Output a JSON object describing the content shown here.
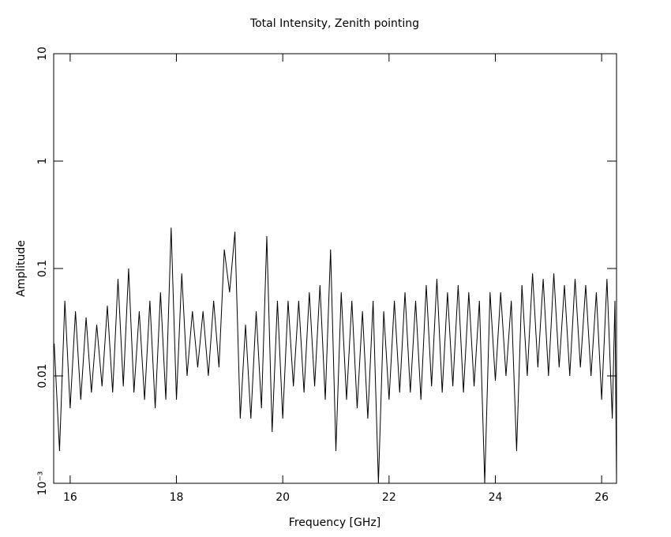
{
  "chart_data": {
    "type": "line",
    "title": "Total Intensity, Zenith pointing",
    "x_label": "Frequency [GHz]",
    "y_label": "Amplitude",
    "yscale": "log",
    "color": "#000000",
    "xlim": [
      15.69,
      26.28
    ],
    "ylim": [
      0.001,
      10
    ],
    "xticks": [
      16,
      18,
      20,
      22,
      24,
      26
    ],
    "yticks": [
      {
        "value": 0.001,
        "label": "10⁻³"
      },
      0.01,
      0.1,
      1,
      10
    ],
    "x": [
      15.7,
      15.8,
      15.9,
      16.0,
      16.1,
      16.2,
      16.3,
      16.4,
      16.5,
      16.6,
      16.7,
      16.8,
      16.9,
      17.0,
      17.1,
      17.2,
      17.3,
      17.4,
      17.5,
      17.6,
      17.7,
      17.8,
      17.9,
      18.0,
      18.1,
      18.2,
      18.3,
      18.4,
      18.5,
      18.6,
      18.7,
      18.8,
      18.9,
      19.0,
      19.1,
      19.2,
      19.3,
      19.4,
      19.5,
      19.6,
      19.7,
      19.8,
      19.9,
      20.0,
      20.1,
      20.2,
      20.3,
      20.4,
      20.5,
      20.6,
      20.7,
      20.8,
      20.9,
      21.0,
      21.1,
      21.2,
      21.3,
      21.4,
      21.5,
      21.6,
      21.7,
      21.8,
      21.9,
      22.0,
      22.1,
      22.2,
      22.3,
      22.4,
      22.5,
      22.6,
      22.7,
      22.8,
      22.9,
      23.0,
      23.1,
      23.2,
      23.3,
      23.4,
      23.5,
      23.6,
      23.7,
      23.8,
      23.9,
      24.0,
      24.1,
      24.2,
      24.3,
      24.4,
      24.5,
      24.6,
      24.7,
      24.8,
      24.9,
      25.0,
      25.1,
      25.2,
      25.3,
      25.4,
      25.5,
      25.6,
      25.7,
      25.8,
      25.9,
      26.0,
      26.1,
      26.2,
      26.25,
      26.28
    ],
    "values": [
      0.02,
      0.002,
      0.05,
      0.005,
      0.04,
      0.006,
      0.035,
      0.007,
      0.03,
      0.008,
      0.045,
      0.007,
      0.08,
      0.008,
      0.1,
      0.007,
      0.04,
      0.006,
      0.05,
      0.005,
      0.06,
      0.006,
      0.24,
      0.006,
      0.09,
      0.01,
      0.04,
      0.012,
      0.04,
      0.01,
      0.05,
      0.012,
      0.15,
      0.06,
      0.22,
      0.004,
      0.03,
      0.004,
      0.04,
      0.005,
      0.2,
      0.003,
      0.05,
      0.004,
      0.05,
      0.008,
      0.05,
      0.007,
      0.06,
      0.008,
      0.07,
      0.006,
      0.15,
      0.002,
      0.06,
      0.006,
      0.05,
      0.005,
      0.04,
      0.004,
      0.05,
      0.001,
      0.04,
      0.006,
      0.05,
      0.007,
      0.06,
      0.007,
      0.05,
      0.006,
      0.07,
      0.008,
      0.08,
      0.007,
      0.06,
      0.008,
      0.07,
      0.007,
      0.06,
      0.008,
      0.05,
      0.001,
      0.06,
      0.009,
      0.06,
      0.01,
      0.05,
      0.002,
      0.07,
      0.01,
      0.09,
      0.012,
      0.08,
      0.01,
      0.09,
      0.012,
      0.07,
      0.01,
      0.08,
      0.012,
      0.07,
      0.01,
      0.06,
      0.006,
      0.08,
      0.004,
      0.05,
      0.001
    ]
  }
}
